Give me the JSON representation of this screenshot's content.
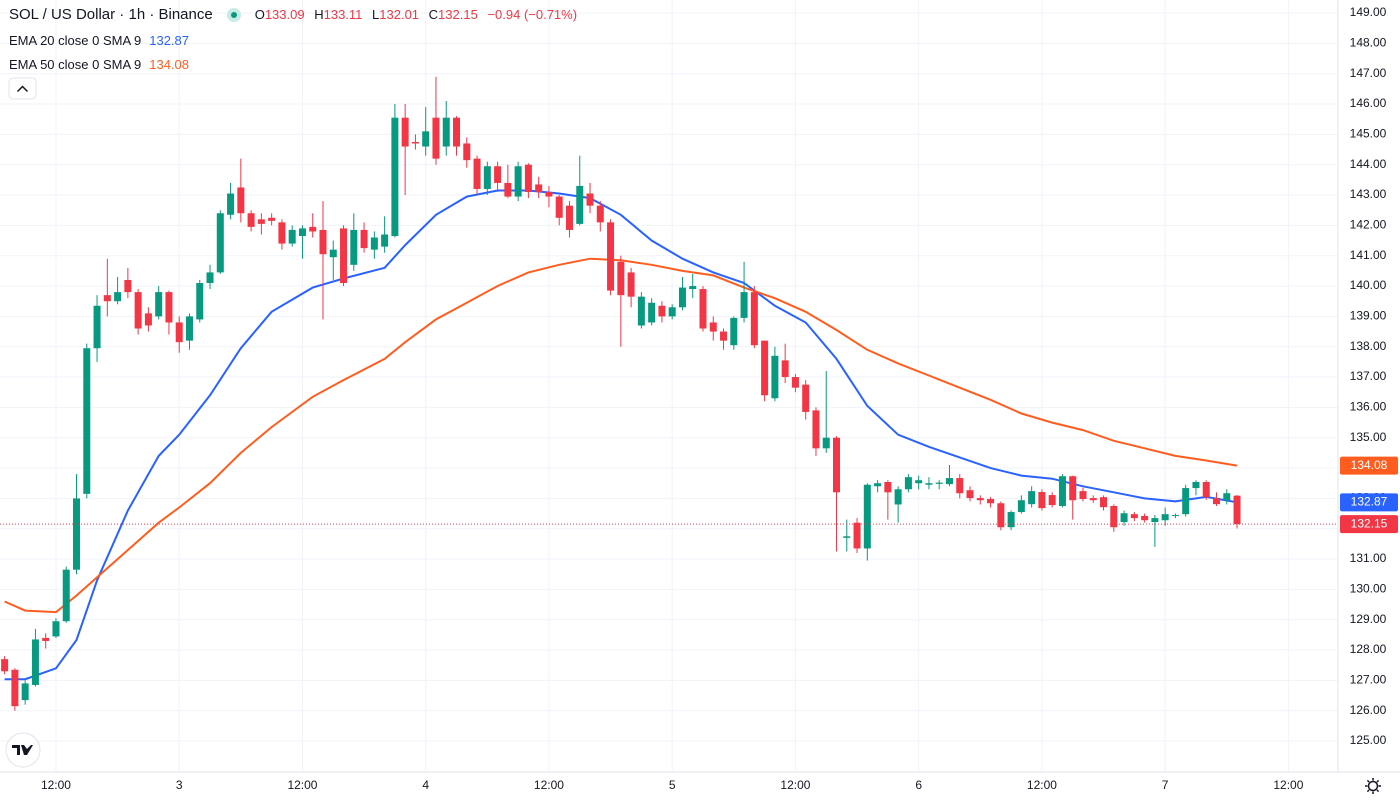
{
  "chart_data": {
    "type": "candlestick",
    "title": "SOL / US Dollar · 1h · Binance",
    "ohlc_labels": [
      "O",
      "H",
      "L",
      "C"
    ],
    "change": "−0.94 (−0.71%)",
    "up_color": "#089981",
    "down_color": "#f23645",
    "grid": true,
    "x": [
      7,
      8,
      9,
      10,
      11,
      12,
      13,
      14,
      15,
      16,
      17,
      18,
      19,
      20,
      21,
      22,
      23,
      24,
      25,
      26,
      27,
      28,
      29,
      30,
      31,
      32,
      33,
      34,
      35,
      36,
      37,
      38,
      39,
      40,
      41,
      42,
      43,
      44,
      45,
      46,
      47,
      48,
      49,
      50,
      51,
      52,
      53,
      54,
      55,
      56,
      57,
      58,
      59,
      60,
      61,
      62,
      63,
      64,
      65,
      66,
      67,
      68,
      69,
      70,
      71,
      72,
      73,
      74,
      75,
      76,
      77,
      78,
      79,
      80,
      81,
      82,
      83,
      84,
      85,
      86,
      87,
      88,
      89,
      90,
      91,
      92,
      93,
      94,
      95,
      96,
      97,
      98,
      99,
      100,
      101,
      102,
      103,
      104,
      105,
      106,
      107,
      108,
      109,
      110,
      111,
      112,
      113,
      114,
      115,
      116,
      117,
      118,
      119,
      120,
      121,
      122,
      123,
      124,
      125,
      126,
      127
    ],
    "open": [
      127.7,
      127.35,
      126.35,
      126.85,
      128.4,
      128.45,
      128.95,
      130.65,
      133.15,
      137.95,
      139.7,
      139.5,
      140.2,
      139.8,
      139.1,
      139.0,
      139.8,
      138.8,
      138.2,
      138.9,
      140.1,
      140.45,
      142.35,
      143.25,
      142.4,
      142.2,
      142.25,
      142.1,
      141.4,
      141.65,
      141.95,
      141.85,
      140.95,
      141.9,
      140.7,
      141.85,
      141.2,
      141.3,
      141.65,
      145.55,
      144.75,
      144.6,
      145.55,
      144.6,
      145.55,
      144.7,
      144.2,
      143.2,
      143.95,
      143.4,
      142.95,
      144.0,
      143.35,
      143.1,
      142.95,
      142.65,
      142.05,
      143.05,
      142.65,
      142.1,
      140.8,
      140.45,
      138.7,
      138.8,
      139.35,
      139.0,
      139.3,
      139.9,
      139.9,
      138.8,
      138.5,
      138.05,
      138.95,
      139.8,
      138.2,
      136.3,
      137.55,
      137.0,
      136.75,
      135.9,
      134.65,
      135.0,
      131.7,
      132.2,
      131.35,
      133.4,
      133.54,
      132.8,
      133.3,
      133.5,
      133.45,
      133.48,
      133.47,
      133.67,
      133.27,
      133.01,
      132.98,
      132.84,
      132.05,
      132.55,
      132.81,
      133.21,
      133.11,
      132.75,
      133.73,
      133.24,
      133.01,
      133.04,
      132.75,
      132.22,
      132.48,
      132.42,
      132.22,
      132.28,
      132.42,
      132.48,
      133.34,
      133.54,
      133.01,
      132.94,
      133.09
    ],
    "high": [
      127.8,
      127.4,
      127.0,
      128.7,
      128.55,
      129.05,
      130.75,
      133.8,
      138.1,
      139.7,
      140.9,
      140.3,
      140.6,
      139.9,
      139.3,
      140.0,
      139.85,
      139.0,
      139.1,
      140.2,
      140.7,
      142.5,
      143.4,
      144.2,
      142.5,
      142.4,
      142.4,
      142.2,
      142.0,
      142.0,
      142.4,
      142.8,
      141.5,
      142.0,
      142.4,
      142.1,
      141.8,
      142.3,
      146.0,
      146.0,
      145.0,
      145.9,
      146.9,
      146.1,
      145.6,
      144.9,
      144.3,
      144.1,
      144.1,
      144.0,
      144.1,
      144.05,
      143.6,
      143.3,
      143.0,
      142.8,
      144.3,
      143.4,
      142.8,
      142.2,
      141.0,
      140.6,
      139.8,
      139.6,
      139.5,
      139.4,
      140.3,
      140.4,
      140.0,
      139.0,
      138.6,
      139.0,
      140.8,
      140.0,
      138.2,
      138.0,
      138.1,
      137.1,
      136.9,
      136.0,
      137.2,
      135.05,
      132.3,
      132.35,
      133.5,
      133.6,
      133.6,
      133.4,
      133.8,
      133.75,
      133.7,
      133.6,
      134.1,
      133.8,
      133.4,
      133.1,
      133.05,
      132.9,
      132.6,
      133.1,
      133.4,
      133.3,
      133.2,
      133.8,
      133.75,
      133.35,
      133.1,
      133.1,
      132.8,
      132.6,
      132.55,
      132.5,
      132.45,
      132.7,
      132.5,
      133.45,
      133.6,
      133.6,
      133.2,
      133.3,
      133.11
    ],
    "low": [
      127.2,
      126.0,
      126.2,
      126.8,
      128.05,
      128.4,
      128.9,
      130.5,
      133.0,
      137.5,
      139.0,
      139.4,
      139.6,
      138.4,
      138.5,
      138.9,
      138.4,
      137.8,
      137.9,
      138.8,
      139.9,
      140.4,
      142.2,
      142.1,
      141.8,
      141.7,
      142.0,
      141.2,
      141.3,
      140.9,
      141.6,
      138.9,
      140.2,
      140.0,
      140.5,
      141.1,
      140.9,
      141.1,
      141.6,
      143.0,
      144.5,
      144.3,
      144.0,
      144.3,
      144.3,
      143.9,
      143.0,
      143.0,
      143.1,
      142.9,
      142.8,
      142.9,
      142.9,
      142.6,
      142.0,
      141.6,
      142.0,
      142.4,
      141.8,
      139.7,
      138.0,
      139.3,
      138.6,
      138.7,
      138.8,
      138.9,
      139.2,
      139.6,
      138.5,
      138.2,
      137.9,
      137.9,
      138.8,
      137.95,
      136.2,
      136.2,
      136.8,
      136.5,
      135.6,
      134.4,
      134.5,
      131.25,
      131.25,
      131.2,
      130.95,
      133.2,
      132.3,
      132.2,
      133.2,
      133.3,
      133.3,
      133.3,
      133.4,
      133.0,
      132.9,
      132.8,
      132.7,
      131.95,
      131.95,
      132.5,
      132.7,
      132.6,
      132.7,
      132.7,
      132.3,
      132.9,
      132.85,
      132.6,
      131.9,
      132.1,
      132.25,
      132.2,
      131.4,
      132.1,
      132.35,
      132.4,
      133.1,
      132.95,
      132.75,
      132.8,
      132.01
    ],
    "close": [
      127.3,
      126.15,
      126.9,
      128.35,
      128.3,
      128.95,
      130.65,
      133.0,
      137.95,
      139.35,
      139.5,
      139.8,
      139.8,
      138.6,
      138.7,
      139.8,
      138.8,
      138.15,
      139.0,
      140.1,
      140.45,
      142.4,
      143.05,
      142.4,
      141.95,
      142.05,
      142.15,
      141.4,
      141.85,
      141.9,
      141.8,
      141.05,
      141.2,
      140.1,
      141.85,
      141.25,
      141.6,
      141.7,
      145.55,
      144.6,
      144.7,
      145.1,
      144.2,
      145.55,
      144.6,
      144.15,
      143.2,
      143.95,
      143.4,
      142.95,
      143.95,
      143.1,
      143.1,
      142.95,
      142.25,
      141.85,
      143.3,
      142.65,
      142.1,
      139.85,
      139.7,
      139.65,
      139.65,
      139.45,
      139.0,
      139.3,
      139.95,
      140.0,
      138.6,
      138.5,
      138.2,
      138.95,
      139.8,
      138.05,
      136.4,
      137.7,
      137.0,
      136.65,
      135.85,
      134.65,
      135.0,
      133.2,
      131.75,
      131.35,
      133.45,
      133.5,
      133.2,
      133.3,
      133.7,
      133.6,
      133.5,
      133.52,
      133.67,
      133.17,
      133.01,
      132.94,
      132.84,
      132.05,
      132.55,
      132.94,
      133.24,
      132.68,
      132.78,
      133.73,
      132.94,
      132.98,
      132.94,
      132.71,
      132.05,
      132.51,
      132.35,
      132.28,
      132.35,
      132.48,
      132.45,
      133.34,
      133.54,
      133.04,
      132.81,
      133.17,
      132.15
    ],
    "series": [
      {
        "name": "EMA 20 close 0 SMA 9",
        "color": "#2962ff",
        "x": [
          7,
          9,
          12,
          14,
          16,
          19,
          22,
          24,
          27,
          30,
          33,
          37,
          40,
          44,
          46,
          49,
          52,
          55,
          58,
          61,
          64,
          67,
          70,
          73,
          76,
          79,
          82,
          85,
          88,
          91,
          94,
          97,
          100,
          103,
          106,
          109,
          112,
          115,
          118,
          121,
          124,
          127
        ],
        "values": [
          127.04,
          127.04,
          127.4,
          128.33,
          130.3,
          132.6,
          134.4,
          135.1,
          136.4,
          137.95,
          139.15,
          139.95,
          140.25,
          140.6,
          141.35,
          142.35,
          142.95,
          143.15,
          143.15,
          143.05,
          142.9,
          142.35,
          141.5,
          140.9,
          140.45,
          140.1,
          139.35,
          138.8,
          137.6,
          136.05,
          135.1,
          134.7,
          134.35,
          134.0,
          133.75,
          133.65,
          133.4,
          133.2,
          133.0,
          132.9,
          133.05,
          132.87
        ]
      },
      {
        "name": "EMA 50 close 0 SMA 9",
        "color": "#ff5d1f",
        "x": [
          7,
          9,
          12,
          14,
          16,
          19,
          22,
          24,
          27,
          30,
          33,
          37,
          40,
          44,
          46,
          49,
          52,
          55,
          58,
          61,
          64,
          67,
          70,
          73,
          76,
          79,
          82,
          85,
          88,
          91,
          94,
          97,
          100,
          103,
          106,
          109,
          112,
          115,
          118,
          121,
          124,
          127
        ],
        "values": [
          129.6,
          129.3,
          129.25,
          129.8,
          130.4,
          131.3,
          132.2,
          132.7,
          133.5,
          134.5,
          135.35,
          136.35,
          136.9,
          137.6,
          138.15,
          138.9,
          139.45,
          140.0,
          140.45,
          140.7,
          140.9,
          140.85,
          140.7,
          140.5,
          140.35,
          139.95,
          139.6,
          139.15,
          138.55,
          137.9,
          137.45,
          137.05,
          136.65,
          136.25,
          135.8,
          135.5,
          135.25,
          134.9,
          134.65,
          134.4,
          134.25,
          134.08
        ]
      }
    ],
    "xlim": [
      6.55,
      136.83
    ],
    "xticks": [
      {
        "value": 12,
        "label": "12:00"
      },
      {
        "value": 24,
        "label": "3"
      },
      {
        "value": 36,
        "label": "12:00"
      },
      {
        "value": 48,
        "label": "4"
      },
      {
        "value": 60,
        "label": "12:00"
      },
      {
        "value": 72,
        "label": "5"
      },
      {
        "value": 84,
        "label": "12:00"
      },
      {
        "value": 96,
        "label": "6"
      },
      {
        "value": 108,
        "label": "12:00"
      },
      {
        "value": 120,
        "label": "7"
      },
      {
        "value": 132,
        "label": "12:00"
      }
    ],
    "ylim": [
      123.98,
      149.43
    ],
    "yticks": [
      {
        "value": 125,
        "label": "125.00"
      },
      {
        "value": 126,
        "label": "126.00"
      },
      {
        "value": 127,
        "label": "127.00"
      },
      {
        "value": 128,
        "label": "128.00"
      },
      {
        "value": 129,
        "label": "129.00"
      },
      {
        "value": 130,
        "label": "130.00"
      },
      {
        "value": 131,
        "label": "131.00"
      },
      {
        "value": 132,
        "label": "132.00"
      },
      {
        "value": 133,
        "label": "133.00"
      },
      {
        "value": 134,
        "label": "134.00"
      },
      {
        "value": 135,
        "label": "135.00"
      },
      {
        "value": 136,
        "label": "136.00"
      },
      {
        "value": 137,
        "label": "137.00"
      },
      {
        "value": 138,
        "label": "138.00"
      },
      {
        "value": 139,
        "label": "139.00"
      },
      {
        "value": 140,
        "label": "140.00"
      },
      {
        "value": 141,
        "label": "141.00"
      },
      {
        "value": 142,
        "label": "142.00"
      },
      {
        "value": 143,
        "label": "143.00"
      },
      {
        "value": 144,
        "label": "144.00"
      },
      {
        "value": 145,
        "label": "145.00"
      },
      {
        "value": 146,
        "label": "146.00"
      },
      {
        "value": 147,
        "label": "147.00"
      },
      {
        "value": 148,
        "label": "148.00"
      },
      {
        "value": 149,
        "label": "149.00"
      }
    ]
  }
}
